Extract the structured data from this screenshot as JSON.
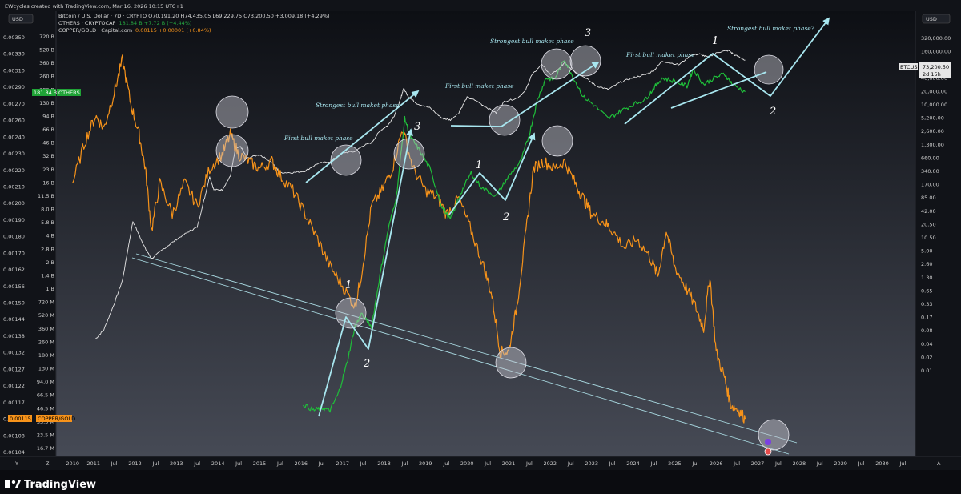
{
  "header": {
    "created_by": "EWcycles created with TradingView.com, Mar 16, 2026 10:15 UTC+1",
    "left_currency": "USD",
    "right_currency": "USD"
  },
  "legend": [
    {
      "text": "Bitcoin / U.S. Dollar · 7D · CRYPTO  O70,191.20  H74,435.05  L69,229.75  C73,200.50  +3,009.18 (+4.29%)",
      "color": "#d8d8d8"
    },
    {
      "text": "OTHERS · CRYPTOCAP",
      "color": "#d8d8d8",
      "value": "181.84 B  +7.72 B (+4.44%)",
      "value_color": "#26a641"
    },
    {
      "text": "COPPER/GOLD · Capital.com",
      "color": "#d8d8d8",
      "value": "0.00115  +0.00001 (+0.84%)",
      "value_color": "#f7931a"
    }
  ],
  "badges": {
    "others_value": "181.84 B",
    "others_name": "OTHERS",
    "copper_value": "0.00115",
    "copper_name": "COPPER/GOLD",
    "btc_name": "BTCUSD",
    "btc_value": "73,200.50",
    "btc_countdown": "2d 15h"
  },
  "footer": {
    "brand": "TradingView",
    "y_label": "Y",
    "z_label": "Z",
    "a_label": "A"
  },
  "colors": {
    "btc": "#e6e6e6",
    "others": "#1fbf3a",
    "copper_gold": "#f7931a",
    "annotation": "#a8e6ef",
    "circle_fill": "#c7c7d1",
    "background_top": "#0d0f14",
    "background_bottom": "#464a55"
  },
  "annotations": [
    {
      "text": "First bull maket phase"
    },
    {
      "text": "Strongest bull maket phase"
    },
    {
      "text": "First bull maket phase"
    },
    {
      "text": "Strongest bull maket phase"
    },
    {
      "text": "First bull maket phase"
    },
    {
      "text": "Strongest bull maket phase?"
    }
  ],
  "wave_labels": [
    "1",
    "2",
    "3",
    "1",
    "2",
    "3",
    "1",
    "2"
  ],
  "chart_data": {
    "type": "line",
    "scale": "log",
    "x_range": [
      2009.6,
      2030.3
    ],
    "x_ticks": [
      "2010",
      "2011",
      "Jul",
      "2012",
      "Jul",
      "2013",
      "Jul",
      "2014",
      "Jul",
      "2015",
      "Jul",
      "2016",
      "Jul",
      "2017",
      "Jul",
      "2018",
      "Jul",
      "2019",
      "Jul",
      "2020",
      "Jul",
      "2021",
      "Jul",
      "2022",
      "Jul",
      "2023",
      "Jul",
      "2024",
      "Jul",
      "2025",
      "Jul",
      "2026",
      "Jul",
      "2027",
      "Jul",
      "2028",
      "Jul",
      "2029",
      "Jul",
      "2030",
      "Jul"
    ],
    "left_axis_copper_gold": [
      "0.00350",
      "0.00330",
      "0.00310",
      "0.00290",
      "0.00270",
      "0.00260",
      "0.00240",
      "0.00230",
      "0.00220",
      "0.00210",
      "0.00200",
      "0.00190",
      "0.00180",
      "0.00170",
      "0.00162",
      "0.00156",
      "0.00150",
      "0.00144",
      "0.00138",
      "0.00132",
      "0.00127",
      "0.00122",
      "0.00117",
      "0.00112",
      "0.00108",
      "0.00104"
    ],
    "left_axis_others": [
      "720 B",
      "520 B",
      "360 B",
      "260 B",
      "180 B",
      "130 B",
      "94 B",
      "66 B",
      "46 B",
      "32 B",
      "23 B",
      "16 B",
      "11.5 B",
      "8.0 B",
      "5.8 B",
      "4 B",
      "2.8 B",
      "2 B",
      "1.4 B",
      "1 B",
      "720 M",
      "520 M",
      "360 M",
      "260 M",
      "180 M",
      "130 M",
      "94.0 M",
      "66.5 M",
      "46.5 M",
      "33.5 M",
      "23.5 M",
      "16.7 M"
    ],
    "right_axis_btc": [
      "320,000.00",
      "160,000.00",
      "80,000.00",
      "40,000.00",
      "20,000.00",
      "10,000.00",
      "5,200.00",
      "2,600.00",
      "1,300.00",
      "660.00",
      "340.00",
      "170.00",
      "85.00",
      "42.00",
      "20.50",
      "10.50",
      "5.00",
      "2.60",
      "1.30",
      "0.65",
      "0.33",
      "0.17",
      "0.08",
      "0.04",
      "0.02",
      "0.01"
    ],
    "series": [
      {
        "name": "BTCUSD",
        "points": [
          [
            2010.55,
            0.05
          ],
          [
            2010.75,
            0.08
          ],
          [
            2011.0,
            0.3
          ],
          [
            2011.2,
            1
          ],
          [
            2011.45,
            20
          ],
          [
            2011.6,
            10
          ],
          [
            2011.75,
            5
          ],
          [
            2011.9,
            3
          ],
          [
            2012.2,
            5
          ],
          [
            2012.5,
            8
          ],
          [
            2012.8,
            12
          ],
          [
            2013.0,
            15
          ],
          [
            2013.2,
            80
          ],
          [
            2013.3,
            200
          ],
          [
            2013.4,
            100
          ],
          [
            2013.6,
            100
          ],
          [
            2013.8,
            200
          ],
          [
            2013.92,
            800
          ],
          [
            2014.05,
            900
          ],
          [
            2014.2,
            500
          ],
          [
            2014.5,
            600
          ],
          [
            2014.8,
            400
          ],
          [
            2015.0,
            240
          ],
          [
            2015.3,
            240
          ],
          [
            2015.6,
            260
          ],
          [
            2015.9,
            380
          ],
          [
            2016.2,
            420
          ],
          [
            2016.5,
            660
          ],
          [
            2016.8,
            700
          ],
          [
            2017.0,
            950
          ],
          [
            2017.2,
            1100
          ],
          [
            2017.4,
            2000
          ],
          [
            2017.6,
            2700
          ],
          [
            2017.75,
            4400
          ],
          [
            2017.9,
            10000
          ],
          [
            2017.97,
            17500
          ],
          [
            2018.1,
            11000
          ],
          [
            2018.3,
            8000
          ],
          [
            2018.6,
            6500
          ],
          [
            2018.9,
            3800
          ],
          [
            2019.1,
            3500
          ],
          [
            2019.3,
            5000
          ],
          [
            2019.5,
            11000
          ],
          [
            2019.7,
            9500
          ],
          [
            2019.9,
            7200
          ],
          [
            2020.2,
            5000
          ],
          [
            2020.4,
            9000
          ],
          [
            2020.7,
            10500
          ],
          [
            2020.9,
            15000
          ],
          [
            2021.05,
            33000
          ],
          [
            2021.3,
            60000
          ],
          [
            2021.5,
            35000
          ],
          [
            2021.7,
            45000
          ],
          [
            2021.85,
            65000
          ],
          [
            2022.1,
            40000
          ],
          [
            2022.35,
            30000
          ],
          [
            2022.6,
            20000
          ],
          [
            2022.9,
            16500
          ],
          [
            2023.2,
            24000
          ],
          [
            2023.5,
            30000
          ],
          [
            2023.8,
            35000
          ],
          [
            2024.0,
            43000
          ],
          [
            2024.2,
            70000
          ],
          [
            2024.6,
            58000
          ],
          [
            2024.9,
            95000
          ],
          [
            2025.1,
            100000
          ],
          [
            2025.3,
            85000
          ],
          [
            2025.55,
            110000
          ],
          [
            2025.8,
            120000
          ],
          [
            2025.95,
            95000
          ],
          [
            2026.2,
            73200
          ]
        ]
      },
      {
        "name": "OTHERS",
        "points": [
          [
            2015.55,
            53000000
          ],
          [
            2015.8,
            45000000
          ],
          [
            2016.0,
            48000000
          ],
          [
            2016.2,
            45000000
          ],
          [
            2016.4,
            70000000
          ],
          [
            2016.6,
            150000000
          ],
          [
            2016.8,
            400000000
          ],
          [
            2016.95,
            550000000
          ],
          [
            2017.2,
            400000000
          ],
          [
            2017.4,
            1500000000
          ],
          [
            2017.6,
            5000000000
          ],
          [
            2017.8,
            12000000000
          ],
          [
            2018.0,
            90000000000
          ],
          [
            2018.15,
            55000000000
          ],
          [
            2018.35,
            40000000000
          ],
          [
            2018.6,
            25000000000
          ],
          [
            2018.9,
            9000000000
          ],
          [
            2019.1,
            6500000000
          ],
          [
            2019.35,
            13000000000
          ],
          [
            2019.6,
            22000000000
          ],
          [
            2019.85,
            15000000000
          ],
          [
            2020.2,
            12000000000
          ],
          [
            2020.5,
            20000000000
          ],
          [
            2020.8,
            30000000000
          ],
          [
            2021.0,
            60000000000
          ],
          [
            2021.2,
            150000000000
          ],
          [
            2021.4,
            260000000000
          ],
          [
            2021.6,
            250000000000
          ],
          [
            2021.85,
            420000000000
          ],
          [
            2022.0,
            300000000000
          ],
          [
            2022.3,
            160000000000
          ],
          [
            2022.55,
            130000000000
          ],
          [
            2022.9,
            90000000000
          ],
          [
            2023.2,
            110000000000
          ],
          [
            2023.5,
            130000000000
          ],
          [
            2023.8,
            150000000000
          ],
          [
            2024.0,
            200000000000
          ],
          [
            2024.2,
            260000000000
          ],
          [
            2024.5,
            240000000000
          ],
          [
            2024.8,
            210000000000
          ],
          [
            2024.95,
            330000000000
          ],
          [
            2025.2,
            220000000000
          ],
          [
            2025.45,
            260000000000
          ],
          [
            2025.7,
            290000000000
          ],
          [
            2025.9,
            220000000000
          ],
          [
            2026.2,
            181840000000
          ]
        ]
      },
      {
        "name": "COPPER/GOLD",
        "points": [
          [
            2010.0,
            0.0023
          ],
          [
            2010.3,
            0.0026
          ],
          [
            2010.55,
            0.0028
          ],
          [
            2010.75,
            0.0027
          ],
          [
            2011.0,
            0.003
          ],
          [
            2011.2,
            0.0033
          ],
          [
            2011.4,
            0.0029
          ],
          [
            2011.6,
            0.00265
          ],
          [
            2011.75,
            0.0024
          ],
          [
            2011.9,
            0.002
          ],
          [
            2012.1,
            0.0023
          ],
          [
            2012.4,
            0.0021
          ],
          [
            2012.7,
            0.0023
          ],
          [
            2013.0,
            0.00215
          ],
          [
            2013.3,
            0.0024
          ],
          [
            2013.6,
            0.0025
          ],
          [
            2013.8,
            0.00265
          ],
          [
            2014.0,
            0.0025
          ],
          [
            2014.25,
            0.00245
          ],
          [
            2014.5,
            0.0024
          ],
          [
            2014.8,
            0.00245
          ],
          [
            2015.0,
            0.00235
          ],
          [
            2015.3,
            0.00225
          ],
          [
            2015.6,
            0.0021
          ],
          [
            2015.9,
            0.00195
          ],
          [
            2016.2,
            0.0018
          ],
          [
            2016.5,
            0.0017
          ],
          [
            2016.8,
            0.0016
          ],
          [
            2016.95,
            0.00175
          ],
          [
            2017.2,
            0.00215
          ],
          [
            2017.45,
            0.00225
          ],
          [
            2017.7,
            0.0024
          ],
          [
            2017.95,
            0.0027
          ],
          [
            2018.2,
            0.0024
          ],
          [
            2018.5,
            0.00225
          ],
          [
            2018.8,
            0.0022
          ],
          [
            2019.0,
            0.0021
          ],
          [
            2019.3,
            0.0022
          ],
          [
            2019.6,
            0.002
          ],
          [
            2019.9,
            0.0018
          ],
          [
            2020.1,
            0.00165
          ],
          [
            2020.3,
            0.0014
          ],
          [
            2020.5,
            0.0014
          ],
          [
            2020.7,
            0.0016
          ],
          [
            2020.9,
            0.00195
          ],
          [
            2021.1,
            0.0024
          ],
          [
            2021.35,
            0.00245
          ],
          [
            2021.6,
            0.0024
          ],
          [
            2021.85,
            0.00245
          ],
          [
            2022.1,
            0.0023
          ],
          [
            2022.3,
            0.0022
          ],
          [
            2022.5,
            0.0021
          ],
          [
            2022.8,
            0.00205
          ],
          [
            2023.0,
            0.002
          ],
          [
            2023.3,
            0.0019
          ],
          [
            2023.6,
            0.00195
          ],
          [
            2023.9,
            0.00185
          ],
          [
            2024.1,
            0.00175
          ],
          [
            2024.3,
            0.002
          ],
          [
            2024.5,
            0.0018
          ],
          [
            2024.75,
            0.0017
          ],
          [
            2025.0,
            0.0016
          ],
          [
            2025.2,
            0.0015
          ],
          [
            2025.35,
            0.00175
          ],
          [
            2025.5,
            0.0014
          ],
          [
            2025.7,
            0.0013
          ],
          [
            2025.85,
            0.0012
          ],
          [
            2026.05,
            0.00118
          ],
          [
            2026.2,
            0.00115
          ]
        ]
      }
    ]
  }
}
